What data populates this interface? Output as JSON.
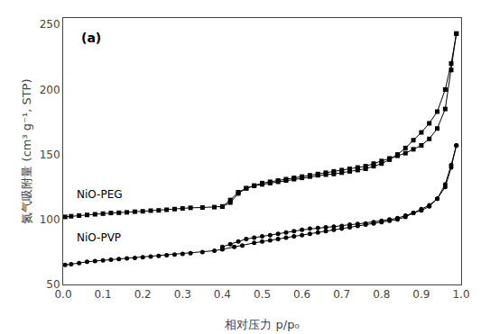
{
  "chart_data": {
    "type": "line",
    "xlabel": "相对压力 p/p₀",
    "ylabel": "氮气吸附量 (cm³ g⁻¹, STP)",
    "xlim": [
      0.0,
      1.0
    ],
    "ylim": [
      50,
      255
    ],
    "xticks": [
      {
        "value": 0.0,
        "label": "0.0"
      },
      0.1,
      0.2,
      0.3,
      0.4,
      0.5,
      0.6,
      0.7,
      0.8,
      0.9,
      {
        "value": 1.0,
        "label": "1.0"
      }
    ],
    "yticks": [
      50,
      100,
      150,
      200,
      250
    ],
    "grid": false,
    "series": [
      {
        "color": "#000000",
        "marker": "square",
        "line_style": "solid",
        "x": [
          0.005,
          0.02,
          0.04,
          0.06,
          0.08,
          0.1,
          0.12,
          0.14,
          0.16,
          0.18,
          0.2,
          0.22,
          0.24,
          0.26,
          0.28,
          0.3,
          0.32,
          0.35,
          0.38,
          0.4,
          0.42,
          0.44,
          0.46,
          0.48,
          0.5,
          0.52,
          0.54,
          0.56,
          0.58,
          0.6,
          0.62,
          0.64,
          0.66,
          0.68,
          0.7,
          0.72,
          0.74,
          0.76,
          0.78,
          0.8,
          0.82,
          0.84,
          0.86,
          0.88,
          0.9,
          0.92,
          0.94,
          0.96,
          0.975,
          0.988
        ],
        "values": [
          102,
          102.5,
          103,
          103.5,
          104,
          104.5,
          105,
          105.2,
          105.5,
          106,
          106.3,
          106.8,
          107,
          107.5,
          108,
          108.5,
          109,
          109.2,
          109.5,
          110,
          113,
          120,
          124,
          126,
          127,
          128,
          129,
          130,
          131,
          132,
          133,
          134,
          134.5,
          135,
          136,
          137,
          138,
          139,
          141,
          143,
          146,
          150,
          155,
          161,
          167,
          174,
          183,
          200,
          220,
          243
        ]
      },
      {
        "color": "#000000",
        "marker": "square",
        "line_style": "solid",
        "x": [
          0.988,
          0.975,
          0.96,
          0.94,
          0.92,
          0.9,
          0.88,
          0.86,
          0.84,
          0.82,
          0.8,
          0.78,
          0.76,
          0.74,
          0.72,
          0.7,
          0.68,
          0.66,
          0.64,
          0.62,
          0.6,
          0.58,
          0.56,
          0.54,
          0.52,
          0.5,
          0.48,
          0.46,
          0.44,
          0.42,
          0.4
        ],
        "values": [
          243,
          215,
          185,
          170,
          162,
          157,
          154,
          151,
          149,
          147,
          145,
          143,
          141,
          140,
          139,
          138,
          137,
          136,
          135,
          134,
          133,
          132,
          131,
          130,
          129,
          128,
          126,
          124,
          121,
          115,
          110
        ]
      },
      {
        "color": "#000000",
        "marker": "circle",
        "line_style": "solid",
        "x": [
          0.005,
          0.02,
          0.04,
          0.06,
          0.08,
          0.1,
          0.12,
          0.14,
          0.16,
          0.18,
          0.2,
          0.22,
          0.24,
          0.26,
          0.28,
          0.3,
          0.32,
          0.35,
          0.38,
          0.4,
          0.43,
          0.45,
          0.48,
          0.5,
          0.52,
          0.54,
          0.56,
          0.58,
          0.6,
          0.62,
          0.64,
          0.66,
          0.68,
          0.7,
          0.72,
          0.74,
          0.76,
          0.78,
          0.8,
          0.82,
          0.84,
          0.86,
          0.88,
          0.9,
          0.92,
          0.94,
          0.96,
          0.975,
          0.988
        ],
        "values": [
          65,
          65.5,
          66.5,
          67.5,
          68,
          68.5,
          69,
          69.5,
          70,
          70.5,
          71,
          71.5,
          72,
          72.5,
          73,
          73.5,
          74,
          75,
          76,
          77,
          79,
          80,
          82,
          83,
          84,
          85,
          86,
          87,
          88,
          89,
          90,
          91,
          92,
          93,
          94,
          95,
          96,
          97,
          98,
          99,
          100,
          102,
          105,
          108,
          111,
          116,
          125,
          140,
          157
        ]
      },
      {
        "color": "#000000",
        "marker": "circle",
        "line_style": "solid",
        "x": [
          0.988,
          0.975,
          0.96,
          0.94,
          0.92,
          0.9,
          0.88,
          0.86,
          0.84,
          0.82,
          0.8,
          0.78,
          0.76,
          0.74,
          0.72,
          0.7,
          0.68,
          0.66,
          0.64,
          0.62,
          0.6,
          0.58,
          0.56,
          0.54,
          0.52,
          0.5,
          0.48,
          0.46,
          0.44,
          0.42,
          0.4
        ],
        "values": [
          157,
          142,
          127,
          116,
          110,
          107,
          105,
          103,
          101,
          100,
          99,
          98,
          97,
          96.5,
          96,
          95,
          94.5,
          94,
          93.5,
          93,
          92,
          91,
          90,
          89,
          88,
          87,
          86,
          85,
          83,
          81,
          79
        ]
      }
    ],
    "annotations": [
      {
        "text": "(a)",
        "color": "#000000"
      },
      {
        "text": "NiO-PEG",
        "x": 0.03,
        "y": 113,
        "color": "#000000"
      },
      {
        "text": "NiO-PVP",
        "x": 0.03,
        "y": 80,
        "color": "#000000"
      }
    ]
  }
}
